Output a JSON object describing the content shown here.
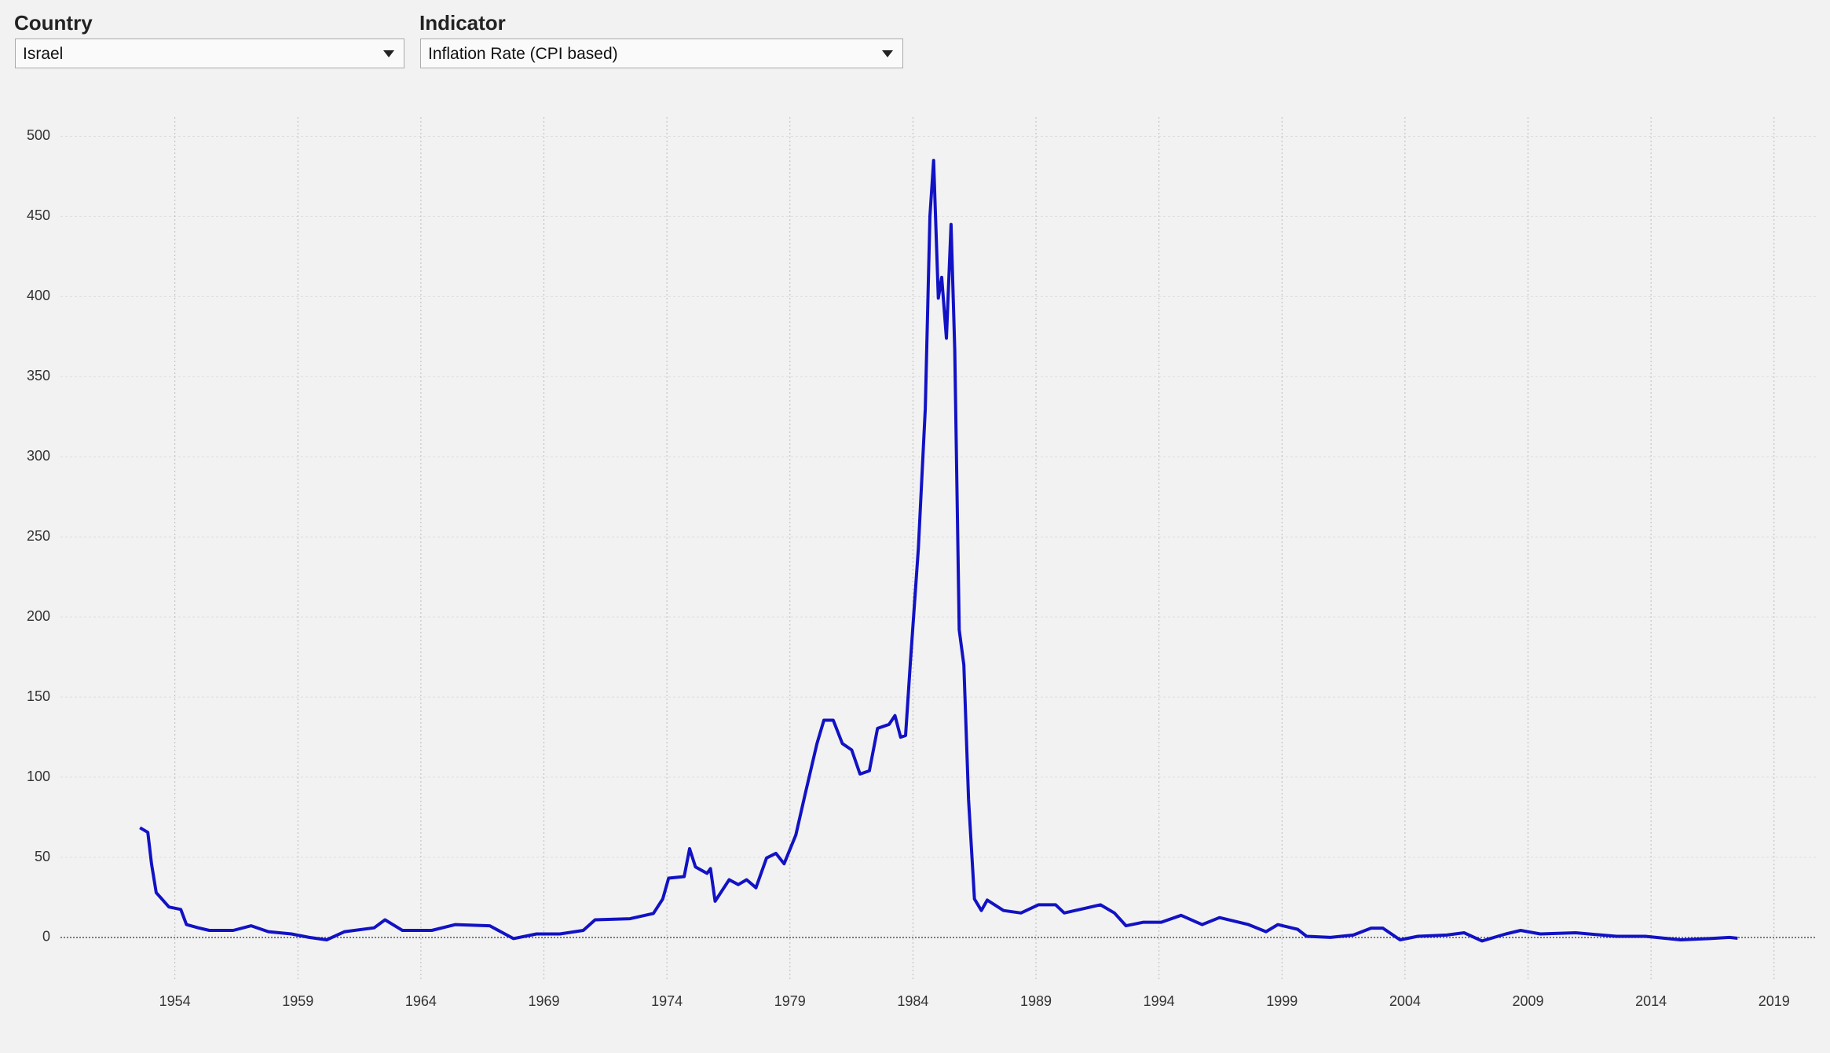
{
  "controls": {
    "country": {
      "label": "Country",
      "selected": "Israel"
    },
    "indicator": {
      "label": "Indicator",
      "selected": "Inflation Rate (CPI based)"
    }
  },
  "chart_data": {
    "type": "line",
    "color": "#1212c4",
    "grid": true,
    "x": [
      1952.58,
      1952.9,
      1953.05,
      1953.24,
      1953.76,
      1954.24,
      1954.47,
      1954.95,
      1955.4,
      1956.37,
      1957.1,
      1957.8,
      1958.74,
      1959.46,
      1960.17,
      1960.9,
      1962.1,
      1962.54,
      1963.25,
      1964.44,
      1965.4,
      1966.8,
      1967.76,
      1968.7,
      1969.65,
      1970.6,
      1971.08,
      1972.5,
      1973.45,
      1973.83,
      1974.07,
      1974.7,
      1974.92,
      1975.16,
      1975.63,
      1975.77,
      1975.96,
      1976.53,
      1976.9,
      1977.24,
      1977.62,
      1978.05,
      1978.43,
      1978.76,
      1979.24,
      1979.62,
      1980.1,
      1980.38,
      1980.76,
      1981.13,
      1981.51,
      1981.85,
      1982.23,
      1982.56,
      1983.03,
      1983.27,
      1983.5,
      1983.7,
      1983.89,
      1984.22,
      1984.5,
      1984.69,
      1984.84,
      1985.03,
      1985.17,
      1985.36,
      1985.55,
      1985.7,
      1985.88,
      1986.07,
      1986.26,
      1986.5,
      1986.78,
      1987.02,
      1987.68,
      1988.39,
      1989.1,
      1989.8,
      1990.15,
      1991.0,
      1991.62,
      1992.19,
      1992.66,
      1993.37,
      1994.09,
      1994.9,
      1995.75,
      1996.46,
      1997.64,
      1998.35,
      1998.83,
      1999.63,
      2000.0,
      2000.97,
      2001.9,
      2002.62,
      2003.1,
      2003.8,
      2004.52,
      2005.7,
      2006.4,
      2007.13,
      2008.1,
      2008.7,
      2009.5,
      2010.93,
      2012.6,
      2013.77,
      2015.2,
      2016.38,
      2017.19,
      2017.52
    ],
    "values": [
      68.5,
      65.6,
      46,
      28,
      19,
      17.5,
      8,
      6,
      4.4,
      4.4,
      7.3,
      3.6,
      2.2,
      0,
      -1.5,
      3.6,
      6,
      11,
      4.4,
      4.4,
      8,
      7.3,
      -0.7,
      2.2,
      2.2,
      4.4,
      11,
      11.7,
      15,
      24,
      37,
      38,
      55.4,
      44,
      40,
      43,
      22.6,
      36,
      33,
      36,
      31,
      49.6,
      52.5,
      46,
      64,
      89.6,
      121,
      135.6,
      135.6,
      121,
      117,
      102,
      104,
      130.5,
      133,
      138.5,
      125,
      126,
      170,
      243,
      330,
      450,
      485,
      399,
      412,
      374,
      445,
      367,
      192,
      170,
      86,
      24,
      16.8,
      23.3,
      16.8,
      15.3,
      20.4,
      20.4,
      15.3,
      18.2,
      20.4,
      15.3,
      7.3,
      9.5,
      9.5,
      13.8,
      8,
      12.4,
      8,
      3.6,
      8,
      5.1,
      0.7,
      0,
      1.5,
      5.8,
      5.8,
      -1.5,
      0.7,
      1.5,
      2.9,
      -2.2,
      2.2,
      4.4,
      2.2,
      2.9,
      0.7,
      0.7,
      -1.5,
      -0.7,
      0,
      -0.5
    ],
    "xlim": [
      1949.35,
      2020.7
    ],
    "xticks": [
      1954,
      1959,
      1964,
      1969,
      1974,
      1979,
      1984,
      1989,
      1994,
      1999,
      2004,
      2009,
      2014,
      2019
    ],
    "ylim": [
      -27,
      512
    ],
    "yticks": [
      0,
      50,
      100,
      150,
      200,
      250,
      300,
      350,
      400,
      450,
      500
    ]
  }
}
